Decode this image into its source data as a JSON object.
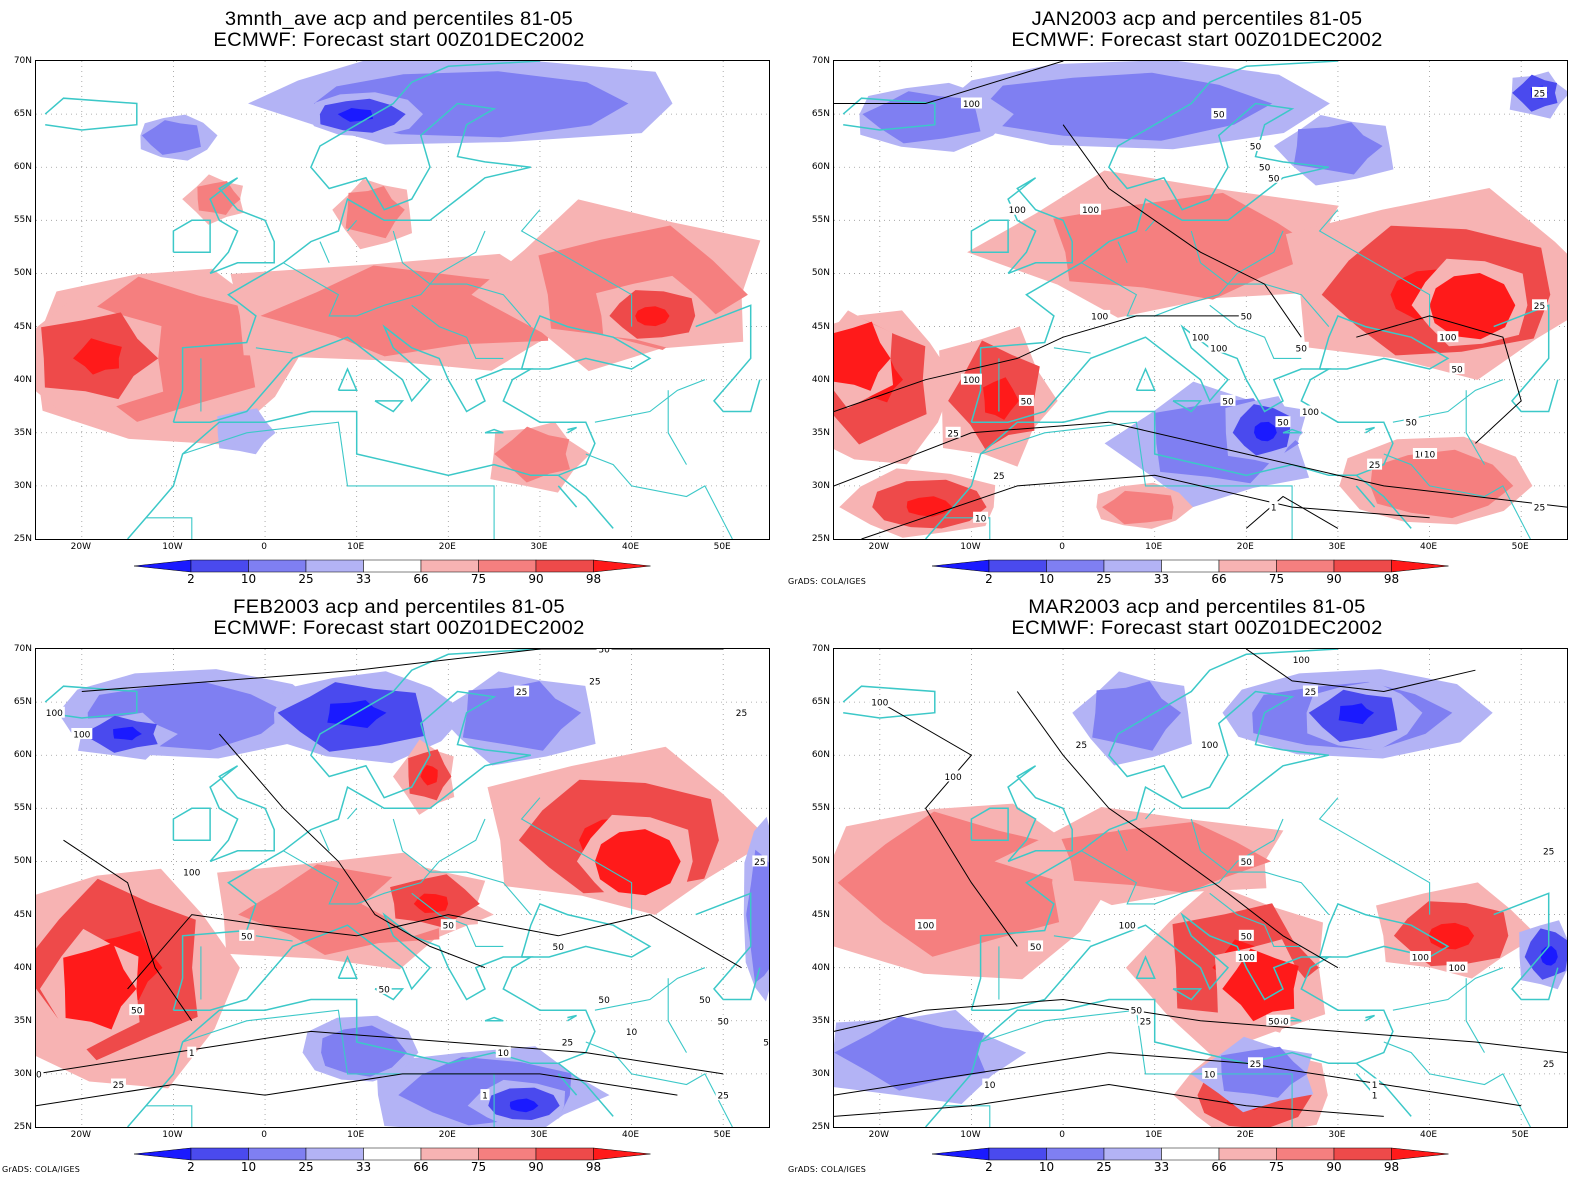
{
  "panels": [
    {
      "title_line1": "3mnth_ave acp and percentiles 81-05",
      "title_line2": "ECMWF: Forecast start 00Z01DEC2002",
      "credit": "",
      "contour_labels": []
    },
    {
      "title_line1": "JAN2003 acp and percentiles 81-05",
      "title_line2": "ECMWF: Forecast start 00Z01DEC2002",
      "credit": "GrADS: COLA/IGES",
      "contour_labels": [
        "100",
        "50",
        "25",
        "100",
        "50",
        "50",
        "100",
        "50",
        "100",
        "100",
        "100",
        "50",
        "100",
        "50",
        "25",
        "50",
        "50",
        "25",
        "100",
        "50",
        "100",
        "50",
        "50",
        "10",
        "25",
        "10",
        "1",
        "25",
        "10",
        "25"
      ]
    },
    {
      "title_line1": "FEB2003 acp and percentiles 81-05",
      "title_line2": "ECMWF: Forecast start 00Z01DEC2002",
      "credit": "GrADS: COLA/IGES",
      "contour_labels": [
        "100",
        "100",
        "25",
        "50",
        "25",
        "25",
        "25",
        "100",
        "50",
        "50",
        "50",
        "50",
        "50",
        "50",
        "50",
        "50",
        "10",
        "25",
        "1",
        "10",
        "10",
        "25",
        "25",
        "1",
        "50"
      ]
    },
    {
      "title_line1": "MAR2003 acp and percentiles 81-05",
      "title_line2": "ECMWF: Forecast start 00Z01DEC2002",
      "credit": "GrADS: COLA/IGES",
      "contour_labels": [
        "100",
        "100",
        "25",
        "50",
        "100",
        "100",
        "25",
        "100",
        "100",
        "50",
        "100",
        "100",
        "100",
        "50",
        "50",
        "50",
        "25",
        "50",
        "25",
        "10",
        "10",
        "1",
        "1",
        "25",
        "25"
      ]
    }
  ],
  "axes": {
    "lat_labels": [
      "70N",
      "65N",
      "60N",
      "55N",
      "50N",
      "45N",
      "40N",
      "35N",
      "30N",
      "25N"
    ],
    "lon_labels": [
      "20W",
      "10W",
      "0",
      "10E",
      "20E",
      "30E",
      "40E",
      "50E"
    ]
  },
  "colorbar": {
    "ticks": [
      "2",
      "10",
      "25",
      "33",
      "66",
      "75",
      "90",
      "98"
    ],
    "colors": [
      "#1a1aff",
      "#4a4aee",
      "#7f7ff2",
      "#b3b3f5",
      "#ffffff",
      "#f7b3b3",
      "#f57f7f",
      "#ee4a4a",
      "#ff1a1a"
    ]
  },
  "colors": {
    "coastline": "#3cc8c8",
    "contour": "#000000"
  }
}
